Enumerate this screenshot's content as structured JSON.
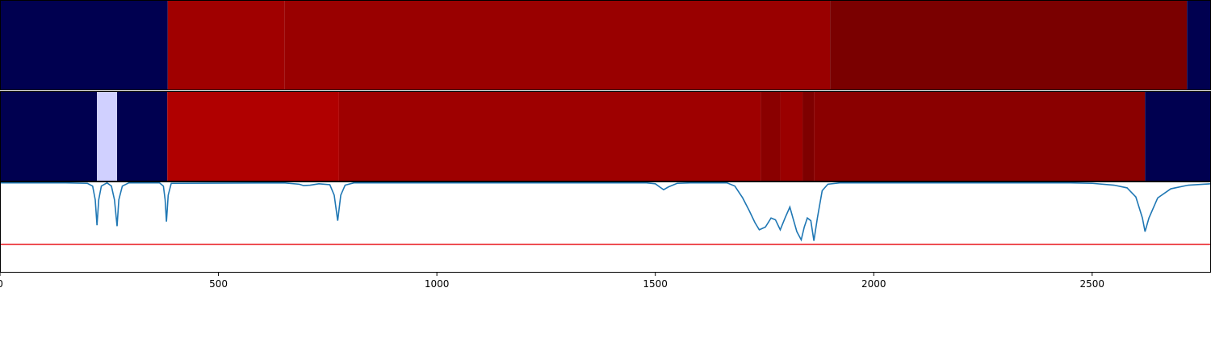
{
  "chart_data": {
    "type": "line",
    "xlim": [
      0,
      2772
    ],
    "xticks": [
      0,
      500,
      1000,
      1500,
      2000,
      2500
    ],
    "ylim": [
      0,
      1
    ],
    "heatmaps": [
      {
        "segments": [
          {
            "start": 0,
            "end": 384,
            "color": "#000050"
          },
          {
            "start": 384,
            "end": 651,
            "color": "#a00000"
          },
          {
            "start": 651,
            "end": 1900,
            "color": "#990000"
          },
          {
            "start": 1900,
            "end": 2717,
            "color": "#7a0000"
          },
          {
            "start": 2717,
            "end": 2772,
            "color": "#000050"
          }
        ]
      },
      {
        "segments": [
          {
            "start": 0,
            "end": 222,
            "color": "#000050"
          },
          {
            "start": 222,
            "end": 268,
            "color": "#d0d0ff"
          },
          {
            "start": 268,
            "end": 383,
            "color": "#000050"
          },
          {
            "start": 383,
            "end": 776,
            "color": "#b00000"
          },
          {
            "start": 776,
            "end": 1741,
            "color": "#9e0000"
          },
          {
            "start": 1741,
            "end": 1786,
            "color": "#8a0000"
          },
          {
            "start": 1786,
            "end": 1837,
            "color": "#9a0000"
          },
          {
            "start": 1837,
            "end": 1863,
            "color": "#7e0000"
          },
          {
            "start": 1863,
            "end": 2621,
            "color": "#8a0000"
          },
          {
            "start": 2621,
            "end": 2772,
            "color": "#000050"
          }
        ]
      }
    ],
    "threshold": 0.31,
    "threshold_color": "#e8141c",
    "series": [
      {
        "color": "#1f77b4",
        "x": [
          0,
          150,
          200,
          212,
          218,
          222,
          226,
          232,
          245,
          255,
          262,
          268,
          272,
          280,
          295,
          365,
          374,
          378,
          381,
          385,
          392,
          650,
          685,
          695,
          710,
          730,
          755,
          765,
          773,
          780,
          790,
          810,
          1480,
          1500,
          1510,
          1519,
          1530,
          1550,
          1580,
          1664,
          1682,
          1700,
          1715,
          1728,
          1738,
          1752,
          1765,
          1775,
          1786,
          1797,
          1808,
          1815,
          1824,
          1834,
          1841,
          1848,
          1856,
          1863,
          1871,
          1882,
          1895,
          1922,
          2050,
          2450,
          2500,
          2550,
          2580,
          2600,
          2615,
          2621,
          2630,
          2650,
          2680,
          2720,
          2772
        ],
        "values": [
          0.985,
          0.985,
          0.98,
          0.95,
          0.8,
          0.52,
          0.8,
          0.95,
          0.985,
          0.95,
          0.8,
          0.51,
          0.8,
          0.95,
          0.985,
          0.985,
          0.95,
          0.8,
          0.56,
          0.85,
          0.98,
          0.985,
          0.97,
          0.955,
          0.96,
          0.975,
          0.965,
          0.85,
          0.57,
          0.85,
          0.96,
          0.985,
          0.985,
          0.975,
          0.94,
          0.91,
          0.94,
          0.98,
          0.985,
          0.985,
          0.95,
          0.82,
          0.68,
          0.55,
          0.47,
          0.5,
          0.6,
          0.58,
          0.47,
          0.6,
          0.72,
          0.6,
          0.45,
          0.36,
          0.5,
          0.6,
          0.57,
          0.35,
          0.6,
          0.9,
          0.97,
          0.985,
          0.985,
          0.985,
          0.98,
          0.96,
          0.93,
          0.83,
          0.6,
          0.45,
          0.6,
          0.82,
          0.92,
          0.96,
          0.975
        ]
      }
    ]
  }
}
